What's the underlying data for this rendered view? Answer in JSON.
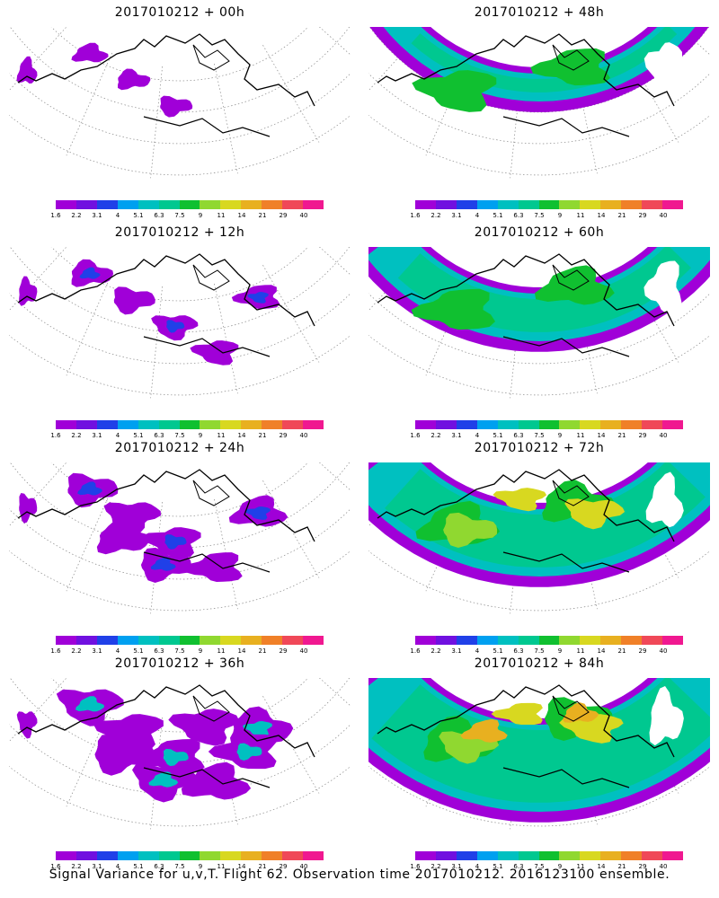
{
  "panels": [
    {
      "title": "2017010212 + 00h",
      "level": 0
    },
    {
      "title": "2017010212 + 48h",
      "level": 4
    },
    {
      "title": "2017010212 + 12h",
      "level": 1
    },
    {
      "title": "2017010212 + 60h",
      "level": 5
    },
    {
      "title": "2017010212 + 24h",
      "level": 2
    },
    {
      "title": "2017010212 + 72h",
      "level": 6
    },
    {
      "title": "2017010212 + 36h",
      "level": 3
    },
    {
      "title": "2017010212 + 84h",
      "level": 7
    }
  ],
  "colorbar": {
    "colors": [
      "#a000d8",
      "#7010e0",
      "#2040e8",
      "#00a0f0",
      "#00c0c0",
      "#00c890",
      "#10c030",
      "#90d830",
      "#d8d820",
      "#e8b020",
      "#f08028",
      "#f04858",
      "#f01890"
    ],
    "labels": [
      "1.6",
      "2.2",
      "3.1",
      "4",
      "5.1",
      "6.3",
      "7.5",
      "9",
      "11",
      "14",
      "21",
      "29",
      "40"
    ]
  },
  "footer": "Signal Variance for u,v,T. Flight 62. Observation time 2017010212. 2016123100 ensemble."
}
